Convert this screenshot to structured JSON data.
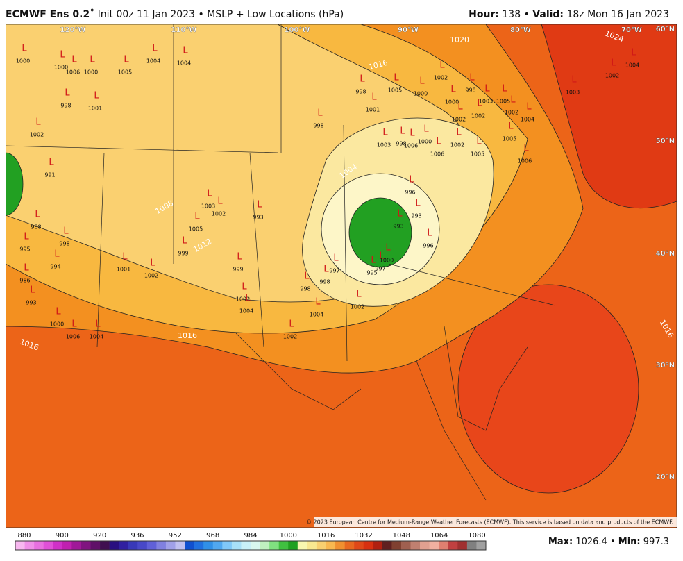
{
  "header": {
    "model": "ECMWF Ens 0.2˚",
    "init": "Init 00z 11 Jan 2023 • MSLP + Low Locations (hPa)",
    "hour_label": "Hour:",
    "hour": "138",
    "separator": "•",
    "valid_label": "Valid:",
    "valid": "18z Mon 16 Jan 2023"
  },
  "map": {
    "lon_labels": [
      "120°W",
      "110°W",
      "100°W",
      "90°W",
      "80°W",
      "70°W"
    ],
    "lat_labels": [
      "60°N",
      "50°N",
      "40°N",
      "30°N",
      "20°N"
    ],
    "contour_labels": [
      "1020",
      "1024",
      "1016",
      "1004",
      "1008",
      "1012",
      "1016",
      "1016",
      "1016"
    ],
    "low_symbol": "L",
    "low_values": [
      1000,
      1000,
      1006,
      1000,
      998,
      1001,
      1002,
      1005,
      1004,
      1004,
      991,
      988,
      998,
      995,
      994,
      986,
      993,
      1000,
      1006,
      1004,
      1001,
      1002,
      999,
      1005,
      1003,
      1002,
      993,
      999,
      1002,
      1004,
      998,
      998,
      997,
      1002,
      1004,
      1002,
      995,
      997,
      1000,
      993,
      996,
      996,
      993,
      998,
      1001,
      1005,
      1000,
      1002,
      1000,
      998,
      1002,
      1002,
      1002,
      1005,
      1005,
      1006,
      1002,
      1004,
      1003,
      1002,
      1004,
      1003,
      998,
      1006,
      1000,
      1006,
      998,
      1003,
      1005
    ],
    "copyright": "© 2023 European Centre for Medium-Range Weather Forecasts (ECMWF). This service is based on data and products of the ECMWF."
  },
  "colorbar": {
    "ticks": [
      "880",
      "900",
      "920",
      "936",
      "952",
      "968",
      "984",
      "1000",
      "1016",
      "1032",
      "1048",
      "1064",
      "1080"
    ],
    "colors": [
      "#f8b8f0",
      "#f090e8",
      "#e870e0",
      "#e050d8",
      "#d030c8",
      "#c020b0",
      "#a01898",
      "#801480",
      "#601068",
      "#401050",
      "#2a1080",
      "#3020a0",
      "#3838b8",
      "#4848c8",
      "#6060d8",
      "#8080e0",
      "#a0a0e8",
      "#c0c0f0",
      "#1050d0",
      "#2070e0",
      "#3090e8",
      "#50a8f0",
      "#80c8f8",
      "#a8e0f8",
      "#c8f0f8",
      "#d8f8f0",
      "#c0f0c0",
      "#80e080",
      "#40c040",
      "#20a020",
      "#f8f8b0",
      "#f8e890",
      "#f8d070",
      "#f8b850",
      "#f09030",
      "#e86820",
      "#e04818",
      "#d83010",
      "#b02010",
      "#602020",
      "#804030",
      "#a06050",
      "#c08070",
      "#e0a090",
      "#f0b0a0",
      "#e08070",
      "#c04040",
      "#a03030",
      "#808080",
      "#a0a0a0"
    ]
  },
  "stats": {
    "max_label": "Max:",
    "max": "1026.4",
    "separator": "•",
    "min_label": "Min:",
    "min": "997.3"
  }
}
